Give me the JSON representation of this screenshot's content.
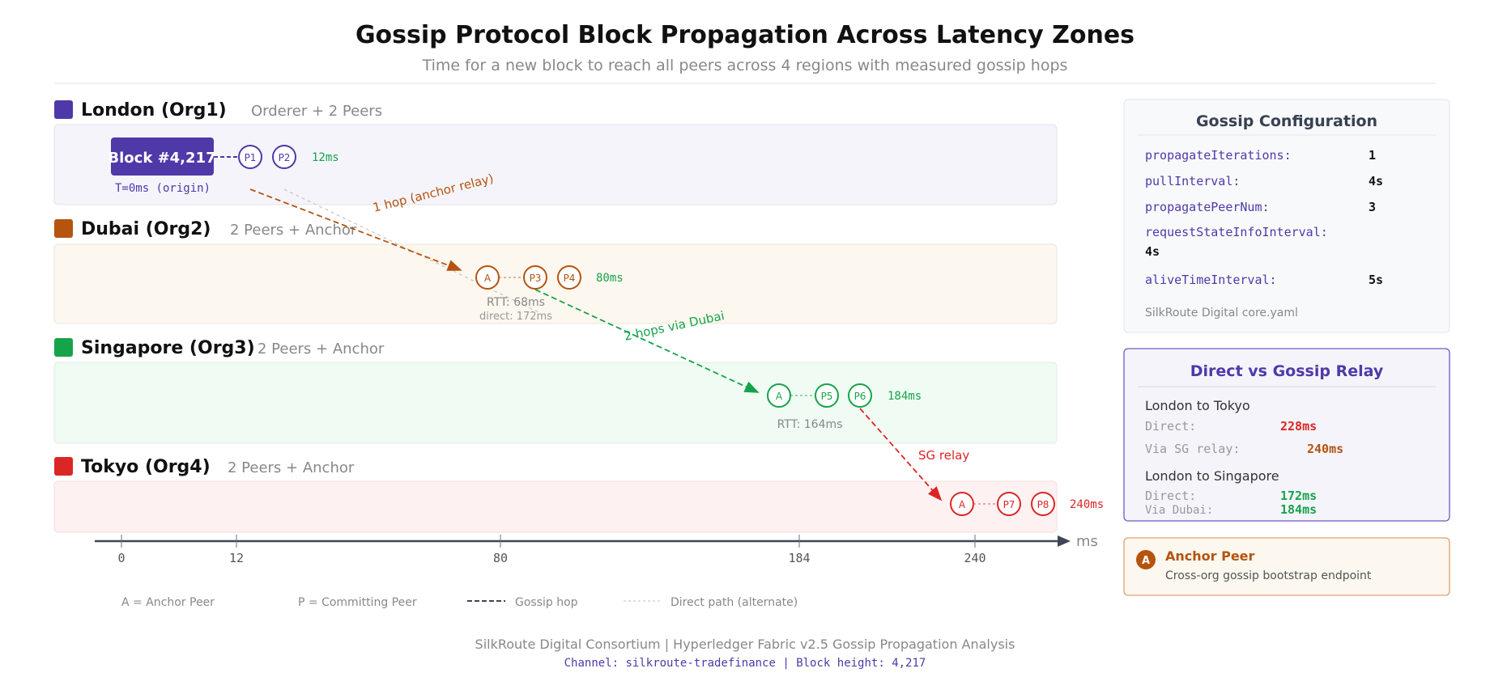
{
  "title": "Gossip Protocol Block Propagation Across Latency Zones",
  "subtitle": "Time for a new block to reach all peers across 4 regions with measured gossip hops",
  "colors": {
    "london": "#4f39a8",
    "dubai": "#b5530f",
    "singapore": "#16a34a",
    "tokyo": "#dc2626"
  },
  "zones": [
    {
      "name": "London (Org1)",
      "desc": "Orderer + 2 Peers",
      "latency": "12ms"
    },
    {
      "name": "Dubai (Org2)",
      "desc": "2 Peers + Anchor",
      "latency": "80ms",
      "rtt": "RTT: 68ms",
      "direct": "direct: 172ms"
    },
    {
      "name": "Singapore (Org3)",
      "desc": "2 Peers + Anchor",
      "latency": "184ms",
      "rtt": "RTT: 164ms"
    },
    {
      "name": "Tokyo (Org4)",
      "desc": "2 Peers + Anchor",
      "latency": "240ms"
    }
  ],
  "block": {
    "label": "Block #4,217",
    "origin": "T=0ms (origin)"
  },
  "nodes": {
    "p1": "P1",
    "p2": "P2",
    "p3": "P3",
    "p4": "P4",
    "p5": "P5",
    "p6": "P6",
    "p7": "P7",
    "p8": "P8",
    "anchor": "A"
  },
  "hops": {
    "dubai": "1 hop (anchor relay)",
    "singapore": "2 hops via Dubai",
    "tokyo": "SG relay"
  },
  "axis": {
    "ticks": [
      "0",
      "12",
      "80",
      "184",
      "240"
    ],
    "unit": "ms"
  },
  "legend": {
    "anchor": "A = Anchor Peer",
    "peer": "P = Committing Peer",
    "gossip": "Gossip hop",
    "direct": "Direct path (alternate)"
  },
  "config": {
    "title": "Gossip Configuration",
    "rows": [
      {
        "key": "propagateIterations:",
        "value": "1"
      },
      {
        "key": "pullInterval:",
        "value": "4s"
      },
      {
        "key": "propagatePeerNum:",
        "value": "3"
      },
      {
        "key": "requestStateInfoInterval:",
        "value": "4s"
      },
      {
        "key": "aliveTimeInterval:",
        "value": "5s"
      }
    ],
    "footer": "SilkRoute Digital core.yaml"
  },
  "compare": {
    "title": "Direct vs Gossip Relay",
    "groups": [
      {
        "label": "London to Tokyo",
        "rows": [
          {
            "key": "Direct:",
            "value": "228ms"
          },
          {
            "key": "Via SG relay:",
            "value": "240ms"
          }
        ]
      },
      {
        "label": "London to Singapore",
        "rows": [
          {
            "key": "Direct:",
            "value": "172ms"
          },
          {
            "key": "Via Dubai:",
            "value": "184ms"
          }
        ]
      }
    ]
  },
  "anchor_card": {
    "badge": "A",
    "title": "Anchor Peer",
    "desc": "Cross-org gossip bootstrap endpoint"
  },
  "footer": {
    "line1": "SilkRoute Digital Consortium | Hyperledger Fabric v2.5 Gossip Propagation Analysis",
    "line2": "Channel: silkroute-tradefinance | Block height: 4,217"
  }
}
